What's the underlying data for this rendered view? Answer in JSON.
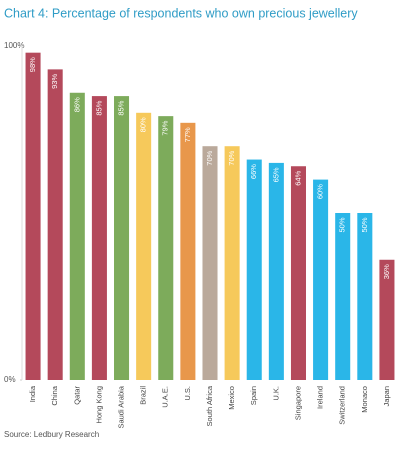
{
  "chart_data": {
    "type": "bar",
    "title": "Chart 4: Percentage of respondents who own precious jewellery",
    "categories": [
      "India",
      "China",
      "Qatar",
      "Hong Kong",
      "Saudi Arabia",
      "Brazil",
      "U.A.E.",
      "U.S.",
      "South Africa",
      "Mexico",
      "Spain",
      "U.K.",
      "Singapore",
      "Ireland",
      "Switzerland",
      "Monaco",
      "Japan"
    ],
    "values": [
      98,
      93,
      86,
      85,
      85,
      80,
      79,
      77,
      70,
      70,
      66,
      65,
      64,
      60,
      50,
      50,
      36
    ],
    "value_labels": [
      "98%",
      "93%",
      "86%",
      "85%",
      "85%",
      "80%",
      "79%",
      "77%",
      "70%",
      "70%",
      "66%",
      "65%",
      "64%",
      "60%",
      "50%",
      "50%",
      "36%"
    ],
    "colors": [
      "#b4495b",
      "#b4495b",
      "#7dab5b",
      "#b4495b",
      "#7dab5b",
      "#f6c95b",
      "#7dab5b",
      "#e8974b",
      "#baa99b",
      "#f6c95b",
      "#2ab6e8",
      "#2ab6e8",
      "#b4495b",
      "#2ab6e8",
      "#2ab6e8",
      "#2ab6e8",
      "#b4495b"
    ],
    "ylim": [
      0,
      100
    ],
    "yticks": [
      {
        "value": 0,
        "label": "0%"
      },
      {
        "value": 100,
        "label": "100%"
      }
    ],
    "source": "Source: Ledbury Research"
  }
}
